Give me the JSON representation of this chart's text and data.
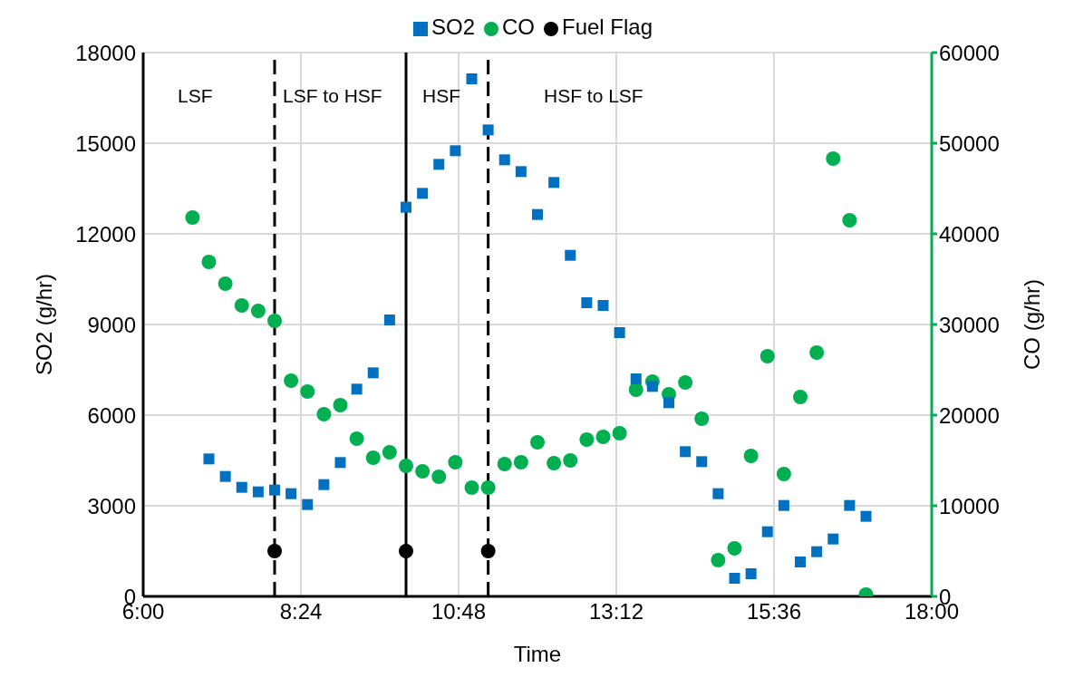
{
  "chart_data": {
    "type": "scatter",
    "xlabel": "Time",
    "ylabel": "SO2 (g/hr)",
    "y2label": "CO (g/hr)",
    "xlim": [
      6,
      18
    ],
    "xticks": [
      {
        "value": 6,
        "label": "6:00"
      },
      {
        "value": 8.4,
        "label": "8:24"
      },
      {
        "value": 10.8,
        "label": "10:48"
      },
      {
        "value": 13.2,
        "label": "13:12"
      },
      {
        "value": 15.6,
        "label": "15:36"
      },
      {
        "value": 18,
        "label": "18:00"
      }
    ],
    "ylim": [
      0,
      18000
    ],
    "yticks": [
      0,
      3000,
      6000,
      9000,
      12000,
      15000,
      18000
    ],
    "y2lim": [
      0,
      60000
    ],
    "y2ticks": [
      0,
      10000,
      20000,
      30000,
      40000,
      50000,
      60000
    ],
    "grid": true,
    "legend": "top",
    "series": [
      {
        "name": "SO2",
        "color": "#0070c0",
        "marker": "square",
        "x": [
          7,
          7.25,
          7.5,
          7.75,
          8,
          8.25,
          8.5,
          8.75,
          9,
          9.25,
          9.5,
          9.75,
          10,
          10.25,
          10.5,
          10.75,
          11,
          11.25,
          11.5,
          11.75,
          12,
          12.25,
          12.5,
          12.75,
          13,
          13.25,
          13.5,
          13.75,
          14,
          14.25,
          14.5,
          14.75,
          15,
          15.25,
          15.5,
          15.75,
          16,
          16.25,
          16.5,
          16.75,
          17
        ],
        "values": [
          4550,
          3970,
          3610,
          3460,
          3520,
          3400,
          3040,
          3700,
          4430,
          6860,
          7400,
          9150,
          12880,
          13340,
          14300,
          14750,
          17130,
          15440,
          14450,
          14060,
          12640,
          13700,
          11290,
          9720,
          9630,
          8730,
          7200,
          6950,
          6410,
          4790,
          4460,
          3400,
          600,
          750,
          2140,
          3010,
          1140,
          1480,
          1900,
          3010,
          2650
        ]
      },
      {
        "name": "CO",
        "color": "#00b050",
        "marker": "circle",
        "axis": "y2",
        "x": [
          6.75,
          7,
          7.25,
          7.5,
          7.75,
          8,
          8.25,
          8.5,
          8.75,
          9,
          9.25,
          9.5,
          9.75,
          10,
          10.25,
          10.5,
          10.75,
          11,
          11.25,
          11.5,
          11.75,
          12,
          12.25,
          12.5,
          12.75,
          13,
          13.25,
          13.5,
          13.75,
          14,
          14.25,
          14.5,
          14.75,
          15,
          15.25,
          15.5,
          15.75,
          16,
          16.25,
          16.5,
          16.75,
          17
        ],
        "values": [
          41800,
          36900,
          34500,
          32100,
          31500,
          30400,
          23800,
          22600,
          20100,
          21100,
          17400,
          15300,
          15900,
          14400,
          13800,
          13200,
          14800,
          12000,
          12000,
          14600,
          14800,
          17000,
          14700,
          15000,
          17300,
          17600,
          18000,
          22800,
          23700,
          22300,
          23600,
          19600,
          4000,
          5300,
          15500,
          26500,
          13500,
          22000,
          26900,
          48300,
          41500,
          200
        ]
      },
      {
        "name": "Fuel Flag",
        "color": "#000000",
        "marker": "circle",
        "x": [
          8,
          10,
          11.25
        ],
        "values": [
          1500,
          1500,
          1500
        ]
      }
    ],
    "ref_lines": [
      {
        "axis": "x",
        "value": 8,
        "line_style": "dashed",
        "color": "#000000"
      },
      {
        "axis": "x",
        "value": 10,
        "line_style": "solid",
        "color": "#000000"
      },
      {
        "axis": "x",
        "value": 11.25,
        "line_style": "dashed",
        "color": "#000000"
      }
    ],
    "annotations": [
      "LSF",
      "LSF to HSF",
      "HSF",
      "HSF to LSF"
    ]
  }
}
